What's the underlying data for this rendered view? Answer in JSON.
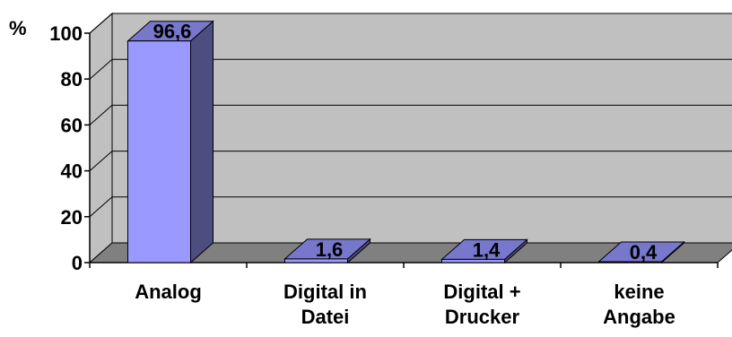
{
  "chart_data": {
    "type": "bar",
    "y_unit_label": "%",
    "categories": [
      [
        "Analog"
      ],
      [
        "Digital in",
        "Datei"
      ],
      [
        "Digital +",
        "Drucker"
      ],
      [
        "keine",
        "Angabe"
      ]
    ],
    "values": [
      96.6,
      1.6,
      1.4,
      0.4
    ],
    "data_labels": [
      "96,6",
      "1,6",
      "1,4",
      "0,4"
    ],
    "y_ticks": [
      0,
      20,
      40,
      60,
      80,
      100
    ],
    "ylim": [
      0,
      100
    ],
    "grid": true,
    "style": "3d",
    "colors": {
      "bar_front": "#9999ff",
      "bar_side": "#4d4d80",
      "bar_top": "#7777cc",
      "wall": "#c0c0c0",
      "floor": "#808080"
    }
  }
}
